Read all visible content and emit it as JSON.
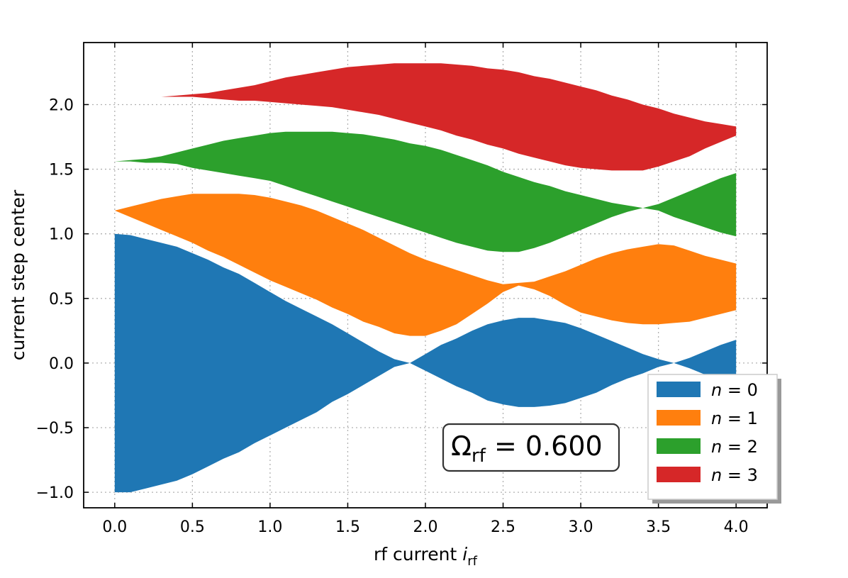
{
  "chart_data": {
    "type": "area",
    "xlabel": "rf current",
    "xlabel_symbol": "i",
    "xlabel_sub": "rf",
    "ylabel": "current step center",
    "xlim": [
      -0.2,
      4.2
    ],
    "ylim": [
      -1.12,
      2.48
    ],
    "xticks": [
      0.0,
      0.5,
      1.0,
      1.5,
      2.0,
      2.5,
      3.0,
      3.5,
      4.0
    ],
    "xtick_labels": [
      "0.0",
      "0.5",
      "1.0",
      "1.5",
      "2.0",
      "2.5",
      "3.0",
      "3.5",
      "4.0"
    ],
    "yticks": [
      -1.0,
      -0.5,
      0.0,
      0.5,
      1.0,
      1.5,
      2.0
    ],
    "ytick_labels": [
      "−1.0",
      "−0.5",
      "0.0",
      "0.5",
      "1.0",
      "1.5",
      "2.0"
    ],
    "grid": true,
    "legend_position": "lower-right",
    "annotation": {
      "symbol": "Ω",
      "sub": "rf",
      "rest": " = 0.600"
    },
    "series": [
      {
        "name": "n = 0",
        "legend_var": "n",
        "legend_rest": " = 0",
        "color": "#1f77b4",
        "x": [
          0.0,
          0.1,
          0.2,
          0.3,
          0.4,
          0.5,
          0.6,
          0.7,
          0.8,
          0.9,
          1.0,
          1.1,
          1.2,
          1.3,
          1.4,
          1.5,
          1.6,
          1.7,
          1.8,
          1.9,
          2.0,
          2.1,
          2.2,
          2.3,
          2.4,
          2.5,
          2.6,
          2.7,
          2.8,
          2.9,
          3.0,
          3.1,
          3.2,
          3.3,
          3.4,
          3.5,
          3.6,
          3.7,
          3.8,
          3.9,
          4.0
        ],
        "upper": [
          1.0,
          0.99,
          0.96,
          0.93,
          0.9,
          0.85,
          0.8,
          0.74,
          0.69,
          0.62,
          0.55,
          0.48,
          0.42,
          0.36,
          0.3,
          0.23,
          0.16,
          0.09,
          0.03,
          0.0,
          0.07,
          0.14,
          0.19,
          0.25,
          0.3,
          0.33,
          0.35,
          0.35,
          0.33,
          0.31,
          0.27,
          0.22,
          0.17,
          0.12,
          0.07,
          0.03,
          0.0,
          0.04,
          0.09,
          0.14,
          0.18
        ],
        "lower": [
          -1.0,
          -1.0,
          -0.97,
          -0.94,
          -0.91,
          -0.86,
          -0.8,
          -0.74,
          -0.69,
          -0.62,
          -0.56,
          -0.5,
          -0.44,
          -0.38,
          -0.3,
          -0.24,
          -0.17,
          -0.1,
          -0.03,
          0.0,
          -0.06,
          -0.12,
          -0.18,
          -0.23,
          -0.29,
          -0.32,
          -0.34,
          -0.34,
          -0.33,
          -0.31,
          -0.27,
          -0.23,
          -0.17,
          -0.12,
          -0.08,
          -0.03,
          0.0,
          -0.04,
          -0.09,
          -0.14,
          -0.18
        ]
      },
      {
        "name": "n = 1",
        "legend_var": "n",
        "legend_rest": " = 1",
        "color": "#ff7f0e",
        "x": [
          0.0,
          0.1,
          0.2,
          0.3,
          0.4,
          0.5,
          0.6,
          0.7,
          0.8,
          0.9,
          1.0,
          1.1,
          1.2,
          1.3,
          1.4,
          1.5,
          1.6,
          1.7,
          1.8,
          1.9,
          2.0,
          2.1,
          2.2,
          2.3,
          2.4,
          2.5,
          2.6,
          2.7,
          2.8,
          2.9,
          3.0,
          3.1,
          3.2,
          3.3,
          3.4,
          3.5,
          3.6,
          3.7,
          3.8,
          3.9,
          4.0
        ],
        "upper": [
          1.18,
          1.21,
          1.24,
          1.27,
          1.29,
          1.31,
          1.31,
          1.31,
          1.31,
          1.3,
          1.28,
          1.25,
          1.22,
          1.18,
          1.13,
          1.08,
          1.03,
          0.97,
          0.91,
          0.85,
          0.8,
          0.76,
          0.72,
          0.68,
          0.64,
          0.61,
          0.62,
          0.63,
          0.67,
          0.71,
          0.76,
          0.81,
          0.85,
          0.88,
          0.9,
          0.92,
          0.91,
          0.87,
          0.83,
          0.8,
          0.77
        ],
        "lower": [
          1.18,
          1.13,
          1.08,
          1.03,
          0.98,
          0.93,
          0.87,
          0.82,
          0.76,
          0.7,
          0.64,
          0.59,
          0.54,
          0.49,
          0.43,
          0.38,
          0.32,
          0.28,
          0.23,
          0.21,
          0.21,
          0.25,
          0.3,
          0.38,
          0.46,
          0.55,
          0.6,
          0.57,
          0.52,
          0.45,
          0.39,
          0.36,
          0.33,
          0.31,
          0.3,
          0.3,
          0.31,
          0.32,
          0.35,
          0.38,
          0.41
        ]
      },
      {
        "name": "n = 2",
        "legend_var": "n",
        "legend_rest": " = 2",
        "color": "#2ca02c",
        "x": [
          0.0,
          0.1,
          0.2,
          0.3,
          0.4,
          0.5,
          0.6,
          0.7,
          0.8,
          0.9,
          1.0,
          1.1,
          1.2,
          1.3,
          1.4,
          1.5,
          1.6,
          1.7,
          1.8,
          1.9,
          2.0,
          2.1,
          2.2,
          2.3,
          2.4,
          2.5,
          2.6,
          2.7,
          2.8,
          2.9,
          3.0,
          3.1,
          3.2,
          3.3,
          3.4,
          3.5,
          3.6,
          3.7,
          3.8,
          3.9,
          4.0
        ],
        "upper": [
          1.56,
          1.57,
          1.58,
          1.6,
          1.63,
          1.66,
          1.69,
          1.72,
          1.74,
          1.76,
          1.78,
          1.79,
          1.79,
          1.79,
          1.79,
          1.78,
          1.77,
          1.75,
          1.73,
          1.7,
          1.68,
          1.65,
          1.61,
          1.57,
          1.53,
          1.48,
          1.44,
          1.4,
          1.37,
          1.33,
          1.3,
          1.27,
          1.24,
          1.22,
          1.2,
          1.23,
          1.28,
          1.33,
          1.38,
          1.43,
          1.47
        ],
        "lower": [
          1.56,
          1.56,
          1.55,
          1.55,
          1.54,
          1.51,
          1.49,
          1.47,
          1.45,
          1.43,
          1.41,
          1.37,
          1.33,
          1.29,
          1.25,
          1.21,
          1.17,
          1.13,
          1.09,
          1.05,
          1.01,
          0.97,
          0.93,
          0.9,
          0.87,
          0.86,
          0.86,
          0.89,
          0.93,
          0.98,
          1.03,
          1.08,
          1.13,
          1.17,
          1.2,
          1.18,
          1.13,
          1.09,
          1.05,
          1.01,
          0.98
        ]
      },
      {
        "name": "n = 3",
        "legend_var": "n",
        "legend_rest": " = 3",
        "color": "#d62728",
        "x": [
          0.0,
          0.1,
          0.2,
          0.3,
          0.4,
          0.5,
          0.6,
          0.7,
          0.8,
          0.9,
          1.0,
          1.1,
          1.2,
          1.3,
          1.4,
          1.5,
          1.6,
          1.7,
          1.8,
          1.9,
          2.0,
          2.1,
          2.2,
          2.3,
          2.4,
          2.5,
          2.6,
          2.7,
          2.8,
          2.9,
          3.0,
          3.1,
          3.2,
          3.3,
          3.4,
          3.5,
          3.6,
          3.7,
          3.8,
          3.9,
          4.0
        ],
        "upper": [
          2.05,
          2.05,
          2.06,
          2.06,
          2.07,
          2.08,
          2.09,
          2.11,
          2.13,
          2.15,
          2.18,
          2.21,
          2.23,
          2.25,
          2.27,
          2.29,
          2.3,
          2.31,
          2.32,
          2.32,
          2.32,
          2.32,
          2.31,
          2.3,
          2.28,
          2.27,
          2.25,
          2.22,
          2.2,
          2.17,
          2.14,
          2.11,
          2.07,
          2.04,
          2.0,
          1.97,
          1.93,
          1.9,
          1.87,
          1.85,
          1.83
        ],
        "lower": [
          2.05,
          2.05,
          2.06,
          2.06,
          2.06,
          2.06,
          2.05,
          2.04,
          2.03,
          2.03,
          2.02,
          2.01,
          2.0,
          1.99,
          1.98,
          1.96,
          1.94,
          1.92,
          1.89,
          1.86,
          1.83,
          1.8,
          1.76,
          1.73,
          1.69,
          1.66,
          1.62,
          1.59,
          1.56,
          1.53,
          1.51,
          1.5,
          1.49,
          1.49,
          1.49,
          1.52,
          1.56,
          1.6,
          1.66,
          1.71,
          1.76
        ]
      }
    ]
  }
}
